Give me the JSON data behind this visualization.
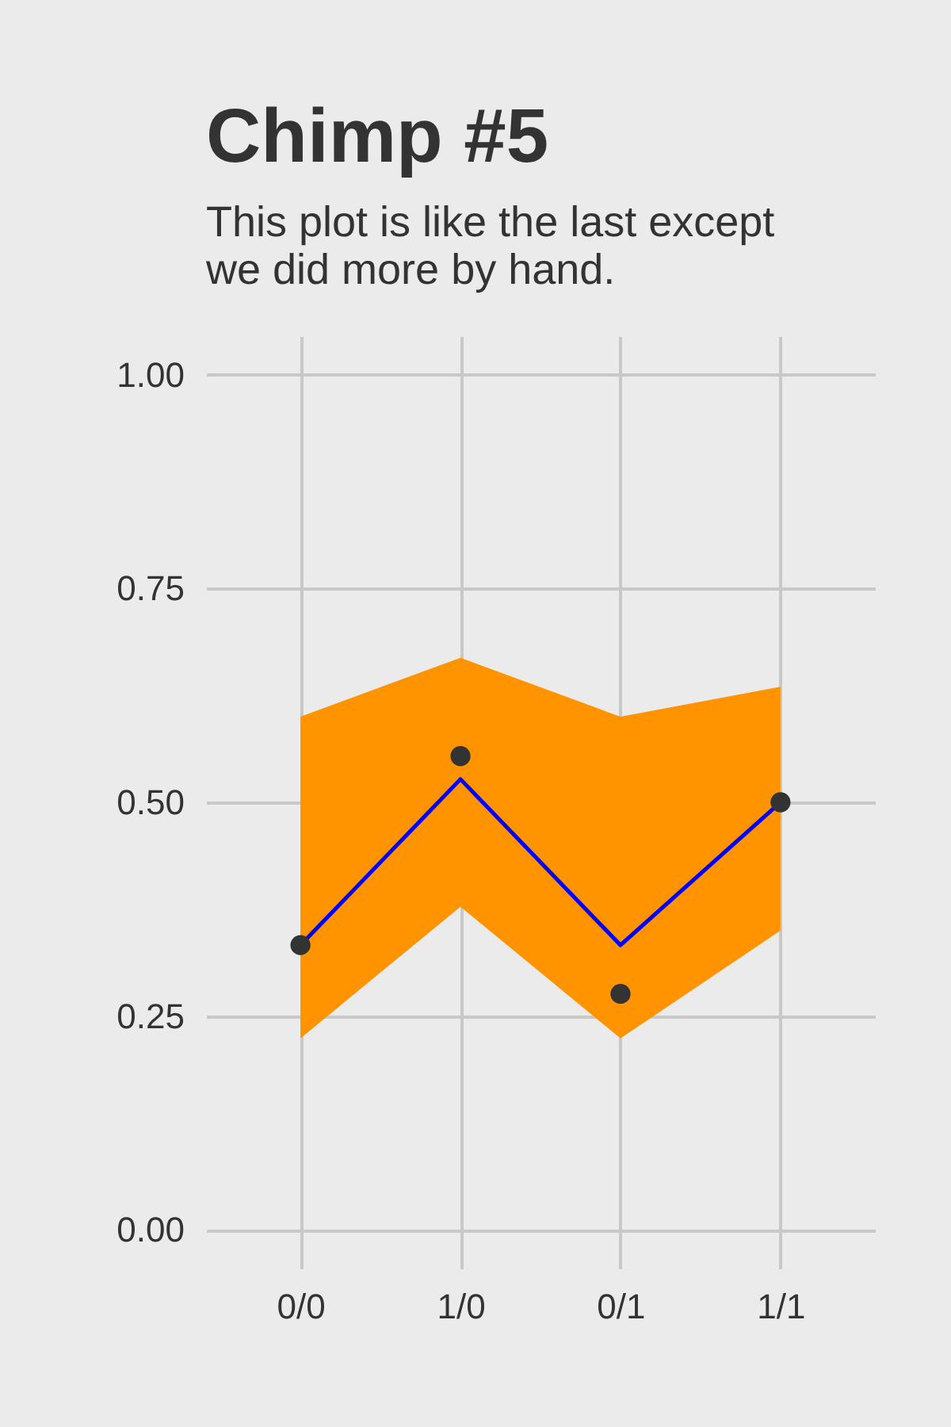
{
  "chart_data": {
    "type": "line",
    "title": "Chimp #5",
    "subtitle": "This plot is like the last except\nwe did more by hand.",
    "categories": [
      "0/0",
      "1/0",
      "0/1",
      "1/1"
    ],
    "series": [
      {
        "color": "#0000ff",
        "values": [
          0.333,
          0.527,
          0.333,
          0.5
        ],
        "lower": [
          0.224,
          0.378,
          0.224,
          0.35
        ],
        "upper": [
          0.6,
          0.669,
          0.6,
          0.635
        ]
      },
      {
        "type": "scatter",
        "color": "#333333",
        "values": [
          0.333,
          0.554,
          0.276,
          0.5
        ],
        "marker": "circle"
      }
    ],
    "ylim": [
      -0.045,
      1.045
    ],
    "yticks": [
      {
        "value": 0,
        "label": "0.00"
      },
      {
        "value": 0.25,
        "label": "0.25"
      },
      {
        "value": 0.5,
        "label": "0.50"
      },
      {
        "value": 0.75,
        "label": "0.75"
      },
      {
        "value": 1,
        "label": "1.00"
      }
    ],
    "grid": true
  }
}
